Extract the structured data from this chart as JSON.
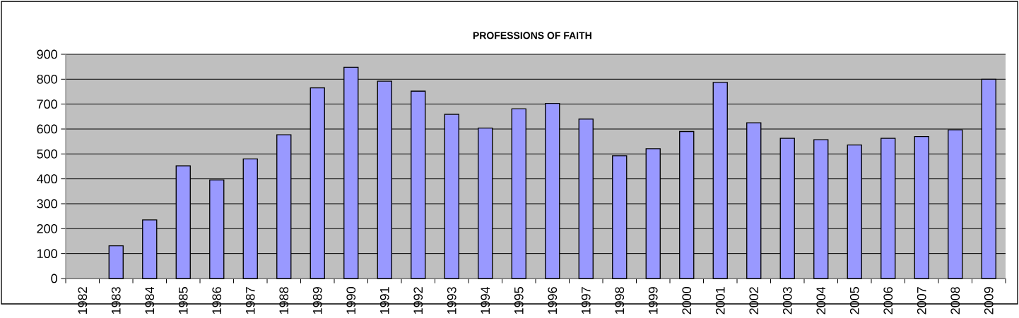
{
  "chart_data": {
    "type": "bar",
    "title": "PROFESSIONS OF FAITH",
    "categories": [
      "1982",
      "1983",
      "1984",
      "1985",
      "1986",
      "1987",
      "1988",
      "1989",
      "1990",
      "1991",
      "1992",
      "1993",
      "1994",
      "1995",
      "1996",
      "1997",
      "1998",
      "1999",
      "2000",
      "2001",
      "2002",
      "2003",
      "2004",
      "2005",
      "2006",
      "2007",
      "2008",
      "2009"
    ],
    "values": [
      null,
      131,
      235,
      452,
      396,
      480,
      577,
      765,
      848,
      792,
      752,
      659,
      604,
      681,
      703,
      640,
      493,
      521,
      590,
      787,
      625,
      563,
      557,
      536,
      563,
      570,
      597,
      800
    ],
    "color": "#9999ff",
    "ylim": [
      0,
      900
    ],
    "yticks": [
      0,
      100,
      200,
      300,
      400,
      500,
      600,
      700,
      800,
      900
    ],
    "grid": "y"
  }
}
